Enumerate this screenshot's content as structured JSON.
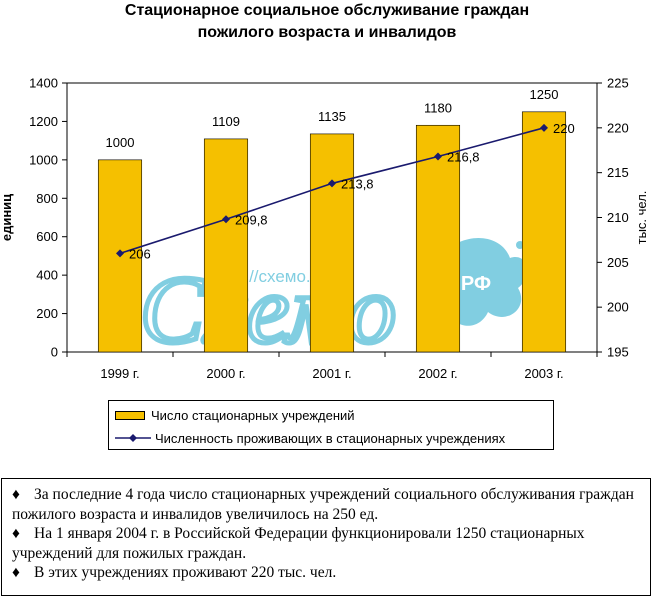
{
  "title_line1": "Стационарное социальное обслуживание граждан",
  "title_line2": "пожилого возраста и инвалидов",
  "chart_data": {
    "type": "bar+line",
    "categories": [
      "1999 г.",
      "2000 г.",
      "2001 г.",
      "2002 г.",
      "2003 г."
    ],
    "bar_series": {
      "name": "Число стационарных учреждений",
      "values": [
        1000,
        1109,
        1135,
        1180,
        1250
      ],
      "color": "#f5c000",
      "axis": "left"
    },
    "line_series": {
      "name": "Численность проживающих в стационарных учреждениях",
      "values": [
        206,
        209.8,
        213.8,
        216.8,
        220
      ],
      "value_labels": [
        "206",
        "209,8",
        "213,8",
        "216,8",
        "220"
      ],
      "color": "#1a1a6e",
      "axis": "right"
    },
    "left_axis": {
      "label": "единиц",
      "ylim": [
        0,
        1400
      ],
      "ticks": [
        0,
        200,
        400,
        600,
        800,
        1000,
        1200,
        1400
      ]
    },
    "right_axis": {
      "label": "тыс. чел.",
      "ylim": [
        195,
        225
      ],
      "ticks": [
        195,
        200,
        205,
        210,
        215,
        220,
        225
      ]
    },
    "legend_position": "bottom",
    "grid": false
  },
  "notes": [
    "За последние 4 года число стационарных учреждений социального обслуживания граждан пожилого возраста и инвалидов увеличилось на 250 ед.",
    "На 1 января 2004 г. в Российской Федерации функционировали 1250 стационарных учреждений для пожилых граждан.",
    "В этих учреждениях проживают 220 тыс. чел."
  ],
  "bullet_char": "♦",
  "watermark": {
    "url_text": "http://схемо.рф",
    "logo_text": "Схемо",
    "badge_text": "РФ",
    "color": "#6cc6dc"
  }
}
